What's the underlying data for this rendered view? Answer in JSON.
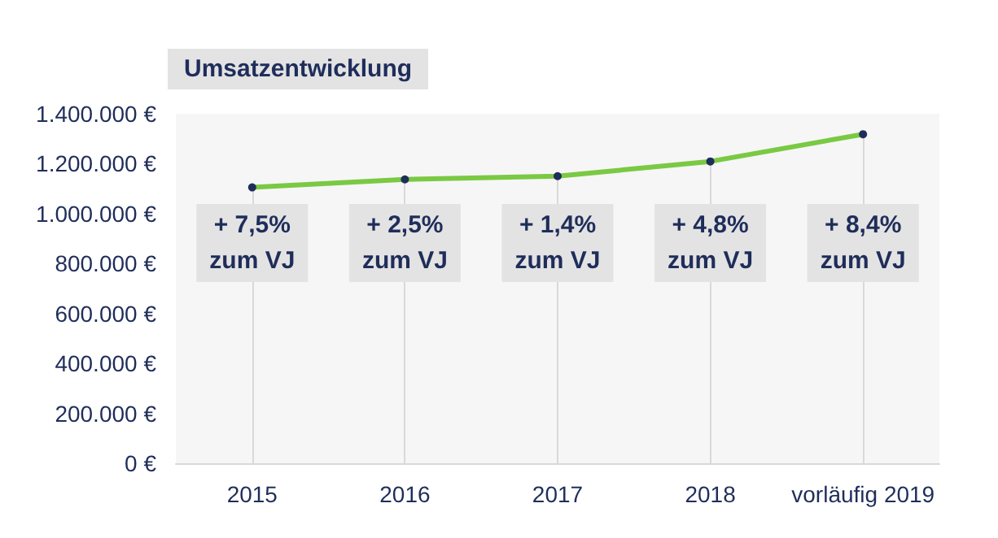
{
  "chart_data": {
    "type": "line",
    "title": "Umsatzentwicklung",
    "categories": [
      "2015",
      "2016",
      "2017",
      "2018",
      "vorläufig 2019"
    ],
    "series": [
      {
        "color": "#7ac943",
        "values": [
          1105000,
          1137000,
          1150000,
          1209000,
          1318000
        ]
      }
    ],
    "ylim": [
      0,
      1400000
    ],
    "yticks": [
      {
        "value": 0,
        "label": "0 €"
      },
      {
        "value": 200000,
        "label": "200.000 €"
      },
      {
        "value": 400000,
        "label": "400.000 €"
      },
      {
        "value": 600000,
        "label": "600.000 €"
      },
      {
        "value": 800000,
        "label": "800.000 €"
      },
      {
        "value": 1000000,
        "label": "1.000.000 €"
      },
      {
        "value": 1200000,
        "label": "1.200.000 €"
      },
      {
        "value": 1400000,
        "label": "1.400.000 €"
      }
    ],
    "annotations": [
      "+ 7,5%\nzum VJ",
      "+ 2,5%\nzum VJ",
      "+ 1,4%\nzum VJ",
      "+ 4,8%\nzum VJ",
      "+ 8,4%\nzum VJ"
    ],
    "grid": "x",
    "marker": "circle",
    "line_style": "solid"
  }
}
